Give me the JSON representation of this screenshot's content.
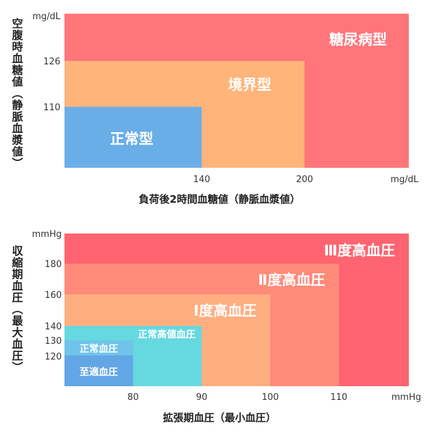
{
  "chart_data": [
    {
      "type": "area",
      "ylabel": "空腹時血糖値（静脈血漿値）",
      "xlabel": "負荷後2時間血糖値（静脈血漿値）",
      "x_unit": "mg/dL",
      "y_unit": "mg/dL",
      "x_ticks": [
        "140",
        "200"
      ],
      "y_ticks": [
        "126",
        "110"
      ],
      "xlim": [
        80,
        300
      ],
      "ylim": [
        70,
        200
      ],
      "regions": [
        {
          "name": "糖尿病型",
          "x_max": 300,
          "y_max": 200,
          "color": "#ff757a"
        },
        {
          "name": "境界型",
          "x_max": 200,
          "y_max": 126,
          "color": "#ffb47a"
        },
        {
          "name": "正常型",
          "x_max": 140,
          "y_max": 110,
          "color": "#6aaee8"
        }
      ]
    },
    {
      "type": "area",
      "ylabel": "収縮期血圧（最大血圧）",
      "xlabel": "拡張期血圧（最小血圧）",
      "x_unit": "mmHg",
      "y_unit": "mmHg",
      "x_ticks": [
        "80",
        "90",
        "100",
        "110"
      ],
      "y_ticks": [
        "180",
        "160",
        "140",
        "130",
        "120"
      ],
      "xlim": [
        70,
        120
      ],
      "ylim": [
        100,
        190
      ],
      "regions": [
        {
          "name": "Ⅲ度高血圧",
          "x_max": 120,
          "y_max": 190,
          "color": "#ff6470"
        },
        {
          "name": "Ⅱ度高血圧",
          "x_max": 110,
          "y_max": 180,
          "color": "#ff8a7a"
        },
        {
          "name": "Ⅰ度高血圧",
          "x_max": 100,
          "y_max": 160,
          "color": "#ffae80"
        },
        {
          "name": "正常高値血圧",
          "x_max": 90,
          "y_max": 140,
          "color": "#66d8e0"
        },
        {
          "name": "正常血圧",
          "x_max": 80,
          "y_max": 130,
          "color": "#70c4ea"
        },
        {
          "name": "至適血圧",
          "x_max": 80,
          "y_max": 120,
          "color": "#62a6e6"
        }
      ]
    }
  ]
}
